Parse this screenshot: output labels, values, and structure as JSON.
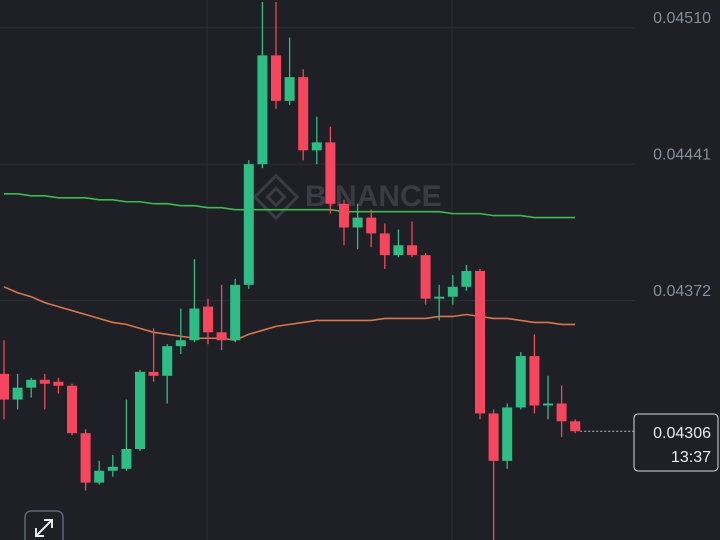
{
  "chart_data": {
    "type": "candlestick",
    "watermark": "BINANCE",
    "up_color": "#2ebd85",
    "down_color": "#f6465d",
    "ylim": [
      0.04251,
      0.04524
    ],
    "yticks": [
      {
        "value": 0.0451,
        "label": "0.04510"
      },
      0.04441,
      0.04372
    ],
    "grid": true,
    "open": [
      0.04335,
      0.04322,
      0.04328,
      0.04332,
      0.04331,
      0.04329,
      0.04305,
      0.0428,
      0.04286,
      0.04287,
      0.04297,
      0.04336,
      0.04334,
      0.04349,
      0.04352,
      0.04369,
      0.04356,
      0.04352,
      0.0438,
      0.04441,
      0.04496,
      0.04473,
      0.04485,
      0.04448,
      0.04452,
      0.04421,
      0.04409,
      0.04414,
      0.04406,
      0.04395,
      0.044,
      0.04395,
      0.04373,
      0.04374,
      0.04379,
      0.04387,
      0.04315,
      0.04291,
      0.04318,
      0.04344,
      0.04319,
      0.0432,
      0.04311
    ],
    "high": [
      0.04352,
      0.04335,
      0.04333,
      0.04335,
      0.04333,
      0.0433,
      0.04307,
      0.04291,
      0.04294,
      0.04322,
      0.04337,
      0.04358,
      0.0435,
      0.04368,
      0.04393,
      0.04373,
      0.0438,
      0.04383,
      0.04443,
      0.04523,
      0.04523,
      0.04505,
      0.04489,
      0.04465,
      0.0446,
      0.04423,
      0.04421,
      0.04418,
      0.04411,
      0.04408,
      0.04412,
      0.04396,
      0.0438,
      0.04385,
      0.0439,
      0.04388,
      0.04317,
      0.0432,
      0.04346,
      0.04355,
      0.04334,
      0.04329,
      0.04312
    ],
    "low": [
      0.04312,
      0.04317,
      0.04323,
      0.04317,
      0.04325,
      0.04304,
      0.04276,
      0.04279,
      0.04283,
      0.04286,
      0.04296,
      0.04331,
      0.0432,
      0.04345,
      0.04351,
      0.0435,
      0.04347,
      0.04351,
      0.04378,
      0.04439,
      0.04469,
      0.04471,
      0.04443,
      0.04441,
      0.04416,
      0.044,
      0.04398,
      0.04399,
      0.04388,
      0.04394,
      0.04394,
      0.0437,
      0.04362,
      0.0437,
      0.04377,
      0.04312,
      0.04251,
      0.04287,
      0.04317,
      0.04315,
      0.04312,
      0.04303,
      0.04305
    ],
    "close": [
      0.04322,
      0.04328,
      0.04332,
      0.0433,
      0.04329,
      0.04305,
      0.0428,
      0.04286,
      0.04288,
      0.04297,
      0.04336,
      0.04334,
      0.04349,
      0.04352,
      0.04368,
      0.04356,
      0.04352,
      0.0438,
      0.04441,
      0.04496,
      0.04473,
      0.04485,
      0.04448,
      0.04452,
      0.04421,
      0.04409,
      0.04414,
      0.04406,
      0.04395,
      0.044,
      0.04395,
      0.04373,
      0.04374,
      0.04379,
      0.04387,
      0.04315,
      0.04291,
      0.04318,
      0.04344,
      0.04319,
      0.0432,
      0.04311,
      0.04306
    ],
    "lines": [
      {
        "color": "#3dbb4e",
        "values": [
          0.04426,
          0.04426,
          0.04425,
          0.04425,
          0.04424,
          0.04424,
          0.04424,
          0.04423,
          0.04423,
          0.04422,
          0.04422,
          0.04421,
          0.04421,
          0.0442,
          0.0442,
          0.04419,
          0.04419,
          0.04418,
          0.04418,
          0.04418,
          0.04418,
          0.04418,
          0.04418,
          0.04418,
          0.04418,
          0.04417,
          0.04417,
          0.04417,
          0.04417,
          0.04417,
          0.04417,
          0.04417,
          0.04417,
          0.04416,
          0.04416,
          0.04416,
          0.04415,
          0.04415,
          0.04415,
          0.04414,
          0.04414,
          0.04414,
          0.04414
        ]
      },
      {
        "color": "#d9774c",
        "values": [
          0.04379,
          0.04376,
          0.04374,
          0.04371,
          0.04369,
          0.04367,
          0.04365,
          0.04363,
          0.04361,
          0.0436,
          0.04358,
          0.04356,
          0.04355,
          0.04354,
          0.04353,
          0.04353,
          0.04353,
          0.04352,
          0.04355,
          0.04357,
          0.04359,
          0.0436,
          0.04361,
          0.04362,
          0.04362,
          0.04362,
          0.04362,
          0.04362,
          0.04363,
          0.04363,
          0.04363,
          0.04363,
          0.04364,
          0.04364,
          0.04365,
          0.04364,
          0.04363,
          0.04363,
          0.04362,
          0.04361,
          0.04361,
          0.0436,
          0.0436
        ]
      }
    ],
    "current_price": 0.04306,
    "countdown": "13:37"
  }
}
